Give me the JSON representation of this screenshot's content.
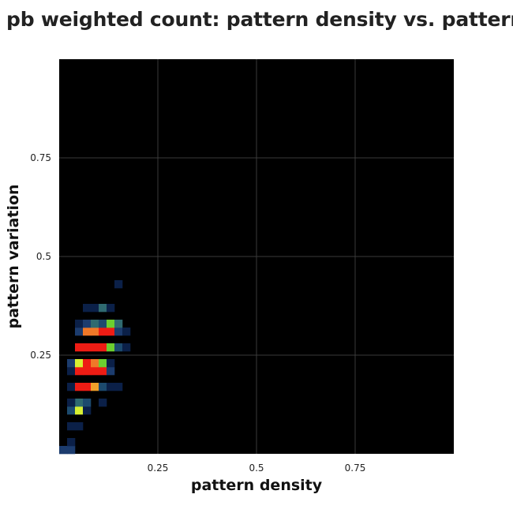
{
  "chart_data": {
    "type": "heatmap",
    "title": "pb weighted count: pattern density vs. pattern",
    "xlabel": "pattern density",
    "ylabel": "pattern variation",
    "xlim": [
      0,
      1
    ],
    "ylim": [
      0,
      1
    ],
    "xticks": [
      0.25,
      0.5,
      0.75
    ],
    "yticks": [
      0.25,
      0.5,
      0.75
    ],
    "xtick_labels": [
      "0.25",
      "0.5",
      "0.75"
    ],
    "ytick_labels": [
      "0.25",
      "0.5",
      "0.75"
    ],
    "grid": true,
    "background_color": "#000000",
    "grid_color": "#3a3a3a",
    "bin_size": 0.02,
    "cells": [
      {
        "x": 0.0,
        "y": 0.0,
        "color": "#1c3c6e"
      },
      {
        "x": 0.02,
        "y": 0.0,
        "color": "#1c3c6e"
      },
      {
        "x": 0.02,
        "y": 0.02,
        "color": "#0b2048"
      },
      {
        "x": 0.02,
        "y": 0.06,
        "color": "#0b2048"
      },
      {
        "x": 0.04,
        "y": 0.06,
        "color": "#0b2048"
      },
      {
        "x": 0.02,
        "y": 0.1,
        "color": "#1c4a6e"
      },
      {
        "x": 0.04,
        "y": 0.1,
        "color": "#d8f032"
      },
      {
        "x": 0.06,
        "y": 0.1,
        "color": "#0b2048"
      },
      {
        "x": 0.04,
        "y": 0.12,
        "color": "#2f6a70"
      },
      {
        "x": 0.06,
        "y": 0.12,
        "color": "#1c4a6e"
      },
      {
        "x": 0.02,
        "y": 0.12,
        "color": "#0b2048"
      },
      {
        "x": 0.1,
        "y": 0.12,
        "color": "#0b2048"
      },
      {
        "x": 0.02,
        "y": 0.16,
        "color": "#0b2048"
      },
      {
        "x": 0.04,
        "y": 0.16,
        "color": "#ee1c14"
      },
      {
        "x": 0.06,
        "y": 0.16,
        "color": "#ee1c14"
      },
      {
        "x": 0.08,
        "y": 0.16,
        "color": "#f0a02a"
      },
      {
        "x": 0.1,
        "y": 0.16,
        "color": "#1c4a6e"
      },
      {
        "x": 0.12,
        "y": 0.16,
        "color": "#0b2048"
      },
      {
        "x": 0.14,
        "y": 0.16,
        "color": "#0b2048"
      },
      {
        "x": 0.02,
        "y": 0.2,
        "color": "#0b2048"
      },
      {
        "x": 0.04,
        "y": 0.2,
        "color": "#ee1c14"
      },
      {
        "x": 0.06,
        "y": 0.2,
        "color": "#ee1c14"
      },
      {
        "x": 0.08,
        "y": 0.2,
        "color": "#ee1c14"
      },
      {
        "x": 0.1,
        "y": 0.2,
        "color": "#ee1c14"
      },
      {
        "x": 0.12,
        "y": 0.2,
        "color": "#1c3c6e"
      },
      {
        "x": 0.02,
        "y": 0.22,
        "color": "#1c3c6e"
      },
      {
        "x": 0.04,
        "y": 0.22,
        "color": "#d8f032"
      },
      {
        "x": 0.06,
        "y": 0.22,
        "color": "#ee1c14"
      },
      {
        "x": 0.08,
        "y": 0.22,
        "color": "#f07828"
      },
      {
        "x": 0.1,
        "y": 0.22,
        "color": "#6ccf30"
      },
      {
        "x": 0.12,
        "y": 0.22,
        "color": "#0b2048"
      },
      {
        "x": 0.04,
        "y": 0.26,
        "color": "#ee1c14"
      },
      {
        "x": 0.06,
        "y": 0.26,
        "color": "#ee1c14"
      },
      {
        "x": 0.08,
        "y": 0.26,
        "color": "#ee1c14"
      },
      {
        "x": 0.1,
        "y": 0.26,
        "color": "#ee1c14"
      },
      {
        "x": 0.12,
        "y": 0.26,
        "color": "#6ccf30"
      },
      {
        "x": 0.14,
        "y": 0.26,
        "color": "#1c4a6e"
      },
      {
        "x": 0.16,
        "y": 0.26,
        "color": "#0b2048"
      },
      {
        "x": 0.04,
        "y": 0.3,
        "color": "#1c3c6e"
      },
      {
        "x": 0.06,
        "y": 0.3,
        "color": "#f07828"
      },
      {
        "x": 0.08,
        "y": 0.3,
        "color": "#f07828"
      },
      {
        "x": 0.1,
        "y": 0.3,
        "color": "#ee1c14"
      },
      {
        "x": 0.12,
        "y": 0.3,
        "color": "#ee1c14"
      },
      {
        "x": 0.14,
        "y": 0.3,
        "color": "#1c3c6e"
      },
      {
        "x": 0.16,
        "y": 0.3,
        "color": "#0b2048"
      },
      {
        "x": 0.04,
        "y": 0.32,
        "color": "#0b2048"
      },
      {
        "x": 0.06,
        "y": 0.32,
        "color": "#1c3c6e"
      },
      {
        "x": 0.08,
        "y": 0.32,
        "color": "#2f6a70"
      },
      {
        "x": 0.1,
        "y": 0.32,
        "color": "#1c4a6e"
      },
      {
        "x": 0.12,
        "y": 0.32,
        "color": "#6ccf30"
      },
      {
        "x": 0.14,
        "y": 0.32,
        "color": "#2f6a70"
      },
      {
        "x": 0.06,
        "y": 0.36,
        "color": "#0b2048"
      },
      {
        "x": 0.08,
        "y": 0.36,
        "color": "#0b2048"
      },
      {
        "x": 0.1,
        "y": 0.36,
        "color": "#2f6a70"
      },
      {
        "x": 0.12,
        "y": 0.36,
        "color": "#0b2048"
      },
      {
        "x": 0.14,
        "y": 0.42,
        "color": "#0b2048"
      }
    ]
  }
}
